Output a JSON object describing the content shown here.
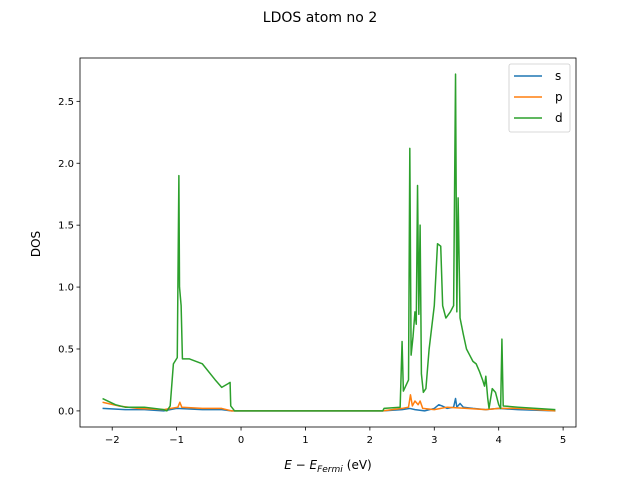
{
  "chart_data": {
    "type": "line",
    "title": "LDOS atom no 2",
    "xlabel_base": "E − E",
    "xlabel_sub": "Fermi",
    "xlabel_unit": "(eV)",
    "ylabel": "DOS",
    "xlim": [
      -2.5,
      5.2
    ],
    "ylim": [
      -0.13,
      2.85
    ],
    "xticks": [
      -2,
      -1,
      0,
      1,
      2,
      3,
      4,
      5
    ],
    "yticks": [
      0.0,
      0.5,
      1.0,
      1.5,
      2.0,
      2.5
    ],
    "ytick_labels": [
      "0.0",
      "0.5",
      "1.0",
      "1.5",
      "2.0",
      "2.5"
    ],
    "legend_position": "top-right",
    "series": [
      {
        "name": "s",
        "color": "#1f77b4",
        "points": [
          [
            -2.15,
            0.02
          ],
          [
            -1.8,
            0.01
          ],
          [
            -1.5,
            0.01
          ],
          [
            -1.2,
            0.0
          ],
          [
            -1.0,
            0.02
          ],
          [
            -0.6,
            0.01
          ],
          [
            -0.3,
            0.01
          ],
          [
            -0.15,
            0.0
          ],
          [
            0.5,
            0.0
          ],
          [
            1.5,
            0.0
          ],
          [
            2.2,
            0.0
          ],
          [
            2.5,
            0.01
          ],
          [
            2.62,
            0.02
          ],
          [
            2.7,
            0.01
          ],
          [
            2.85,
            0.0
          ],
          [
            3.0,
            0.02
          ],
          [
            3.07,
            0.05
          ],
          [
            3.12,
            0.04
          ],
          [
            3.2,
            0.02
          ],
          [
            3.3,
            0.03
          ],
          [
            3.33,
            0.1
          ],
          [
            3.35,
            0.03
          ],
          [
            3.4,
            0.06
          ],
          [
            3.45,
            0.03
          ],
          [
            3.6,
            0.02
          ],
          [
            3.8,
            0.01
          ],
          [
            4.0,
            0.02
          ],
          [
            4.3,
            0.01
          ],
          [
            4.88,
            0.0
          ]
        ]
      },
      {
        "name": "p",
        "color": "#ff7f0e",
        "points": [
          [
            -2.15,
            0.07
          ],
          [
            -1.9,
            0.04
          ],
          [
            -1.6,
            0.02
          ],
          [
            -1.2,
            0.01
          ],
          [
            -0.98,
            0.03
          ],
          [
            -0.95,
            0.07
          ],
          [
            -0.92,
            0.03
          ],
          [
            -0.6,
            0.02
          ],
          [
            -0.3,
            0.02
          ],
          [
            -0.15,
            0.0
          ],
          [
            0.5,
            0.0
          ],
          [
            1.5,
            0.0
          ],
          [
            2.2,
            0.0
          ],
          [
            2.5,
            0.02
          ],
          [
            2.6,
            0.03
          ],
          [
            2.63,
            0.13
          ],
          [
            2.66,
            0.04
          ],
          [
            2.7,
            0.08
          ],
          [
            2.75,
            0.05
          ],
          [
            2.78,
            0.08
          ],
          [
            2.82,
            0.02
          ],
          [
            3.0,
            0.01
          ],
          [
            3.2,
            0.03
          ],
          [
            3.5,
            0.02
          ],
          [
            3.8,
            0.01
          ],
          [
            4.0,
            0.02
          ],
          [
            4.3,
            0.02
          ],
          [
            4.88,
            0.0
          ]
        ]
      },
      {
        "name": "d",
        "color": "#2ca02c",
        "points": [
          [
            -2.15,
            0.1
          ],
          [
            -1.95,
            0.05
          ],
          [
            -1.8,
            0.03
          ],
          [
            -1.5,
            0.03
          ],
          [
            -1.2,
            0.01
          ],
          [
            -1.15,
            0.0
          ],
          [
            -1.1,
            0.04
          ],
          [
            -1.05,
            0.38
          ],
          [
            -0.99,
            0.43
          ],
          [
            -0.965,
            1.9
          ],
          [
            -0.955,
            1.0
          ],
          [
            -0.93,
            0.85
          ],
          [
            -0.91,
            0.42
          ],
          [
            -0.8,
            0.42
          ],
          [
            -0.6,
            0.38
          ],
          [
            -0.4,
            0.25
          ],
          [
            -0.3,
            0.19
          ],
          [
            -0.2,
            0.22
          ],
          [
            -0.17,
            0.23
          ],
          [
            -0.16,
            0.04
          ],
          [
            -0.1,
            0.0
          ],
          [
            0.5,
            0.0
          ],
          [
            1.5,
            0.0
          ],
          [
            2.2,
            0.0
          ],
          [
            2.22,
            0.02
          ],
          [
            2.47,
            0.03
          ],
          [
            2.5,
            0.56
          ],
          [
            2.52,
            0.16
          ],
          [
            2.6,
            0.25
          ],
          [
            2.62,
            2.12
          ],
          [
            2.64,
            0.45
          ],
          [
            2.67,
            0.6
          ],
          [
            2.7,
            0.8
          ],
          [
            2.72,
            0.7
          ],
          [
            2.74,
            1.82
          ],
          [
            2.76,
            0.78
          ],
          [
            2.78,
            1.5
          ],
          [
            2.8,
            0.3
          ],
          [
            2.83,
            0.15
          ],
          [
            2.87,
            0.18
          ],
          [
            2.92,
            0.5
          ],
          [
            3.0,
            0.85
          ],
          [
            3.05,
            1.35
          ],
          [
            3.1,
            1.33
          ],
          [
            3.13,
            0.85
          ],
          [
            3.18,
            0.75
          ],
          [
            3.25,
            0.8
          ],
          [
            3.3,
            0.85
          ],
          [
            3.33,
            2.72
          ],
          [
            3.35,
            0.8
          ],
          [
            3.37,
            1.72
          ],
          [
            3.4,
            0.75
          ],
          [
            3.45,
            0.62
          ],
          [
            3.5,
            0.5
          ],
          [
            3.55,
            0.45
          ],
          [
            3.6,
            0.4
          ],
          [
            3.65,
            0.38
          ],
          [
            3.7,
            0.32
          ],
          [
            3.75,
            0.25
          ],
          [
            3.78,
            0.2
          ],
          [
            3.8,
            0.28
          ],
          [
            3.83,
            0.1
          ],
          [
            3.85,
            0.02
          ],
          [
            3.9,
            0.18
          ],
          [
            3.95,
            0.15
          ],
          [
            4.0,
            0.05
          ],
          [
            4.03,
            0.02
          ],
          [
            4.05,
            0.58
          ],
          [
            4.07,
            0.04
          ],
          [
            4.3,
            0.03
          ],
          [
            4.88,
            0.01
          ]
        ]
      }
    ]
  }
}
